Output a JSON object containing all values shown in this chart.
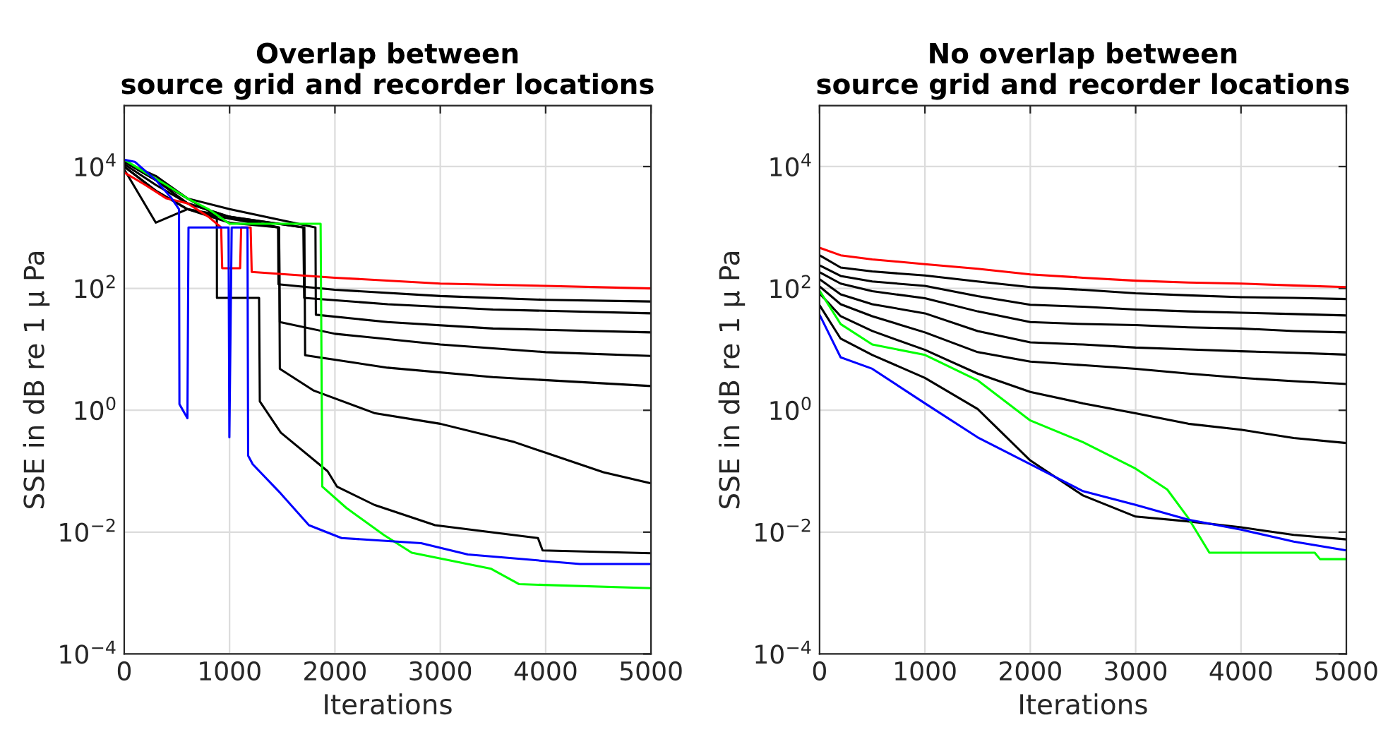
{
  "chart_data": [
    {
      "type": "line",
      "title": "Overlap between\nsource grid and recorder locations",
      "xlabel": "Iterations",
      "ylabel": "SSE in dB re 1 μ Pa",
      "log": "y",
      "grid": true,
      "xlim": [
        0,
        5000
      ],
      "xticks": [
        0,
        1000,
        2000,
        3000,
        4000,
        5000
      ],
      "ylim": [
        0.0001,
        100000
      ],
      "yticks": [
        {
          "value": 0.0001,
          "label": "10$^{−4}$"
        },
        {
          "value": 0.01,
          "label": "10$^{−2}$"
        },
        {
          "value": 1,
          "label": "10$^{0}$"
        },
        {
          "value": 100,
          "label": "10$^{2}$"
        },
        {
          "value": 10000,
          "label": "10$^{4}$"
        }
      ],
      "series": [
        {
          "color": "#000000",
          "x": [
            0,
            300,
            600,
            900,
            1460,
            1464,
            2000,
            3000,
            4000,
            5000
          ],
          "values": [
            12000,
            6000,
            3000,
            1500,
            1000,
            117,
            95,
            75,
            65,
            61
          ]
        },
        {
          "color": "#000000",
          "x": [
            0,
            300,
            600,
            1000,
            1700,
            1708,
            2500,
            3500,
            5000
          ],
          "values": [
            11000,
            5000,
            2500,
            1500,
            1000,
            70,
            55,
            45,
            39
          ]
        },
        {
          "color": "#000000",
          "x": [
            0,
            300,
            600,
            1000,
            1815,
            1819,
            2500,
            3500,
            5000
          ],
          "values": [
            12000,
            7000,
            3000,
            2000,
            1000,
            37,
            28,
            22,
            19
          ]
        },
        {
          "color": "#000000",
          "x": [
            0,
            300,
            600,
            1000,
            1470,
            1477,
            2000,
            3000,
            4000,
            5000
          ],
          "values": [
            10000,
            4000,
            2000,
            1200,
            1000,
            28,
            18,
            12,
            9,
            7.8
          ]
        },
        {
          "color": "#000000",
          "x": [
            0,
            300,
            600,
            1000,
            1710,
            1717,
            2500,
            3500,
            5000
          ],
          "values": [
            12000,
            6000,
            2500,
            1500,
            1000,
            8,
            5,
            3.5,
            2.5
          ]
        },
        {
          "color": "#000000",
          "x": [
            0,
            300,
            600,
            1000,
            1470,
            1477,
            1800,
            2374,
            3000,
            3705,
            4548,
            5000
          ],
          "values": [
            9000,
            1200,
            2000,
            1500,
            1000,
            4.8,
            2.1,
            0.9,
            0.6,
            0.3,
            0.096,
            0.063
          ]
        },
        {
          "color": "#000000",
          "x": [
            0,
            300,
            600,
            879,
            880,
            1280,
            1287,
            1486,
            1930,
            2019,
            2374,
            2950,
            3927,
            3971,
            5000
          ],
          "values": [
            10000,
            4000,
            2000,
            1500,
            70,
            70,
            1.4,
            0.43,
            0.1,
            0.056,
            0.028,
            0.013,
            0.008,
            0.005,
            0.0045
          ]
        },
        {
          "color": "#ff0000",
          "x": [
            0,
            200,
            400,
            600,
            800,
            920,
            930,
            1100,
            1110,
            1200,
            1210,
            2000,
            3000,
            4000,
            5000
          ],
          "values": [
            8000,
            5000,
            3000,
            2500,
            1500,
            1000,
            215,
            215,
            1000,
            1000,
            186,
            150,
            120,
            110,
            100
          ]
        },
        {
          "color": "#00ff00",
          "x": [
            0,
            200,
            400,
            600,
            800,
            1000,
            1864,
            1880,
            2108,
            2463,
            2729,
            3483,
            3749,
            5000
          ],
          "values": [
            13000,
            8000,
            5000,
            3000,
            2000,
            1150,
            1150,
            0.056,
            0.025,
            0.009,
            0.0046,
            0.0025,
            0.0014,
            0.0012
          ]
        },
        {
          "color": "#0000ff",
          "x": [
            0,
            100,
            300,
            450,
            520,
            524,
            600,
            610,
            990,
            998,
            1020,
            1170,
            1176,
            1220,
            1486,
            1753,
            2063,
            2818,
            3261,
            4326,
            5000
          ],
          "values": [
            13000,
            12000,
            6000,
            3000,
            2000,
            1.26,
            0.74,
            1000,
            1000,
            0.36,
            1000,
            1000,
            0.18,
            0.13,
            0.043,
            0.013,
            0.008,
            0.0066,
            0.0043,
            0.003,
            0.003
          ]
        }
      ]
    },
    {
      "type": "line",
      "title": "No overlap between\nsource grid and recorder locations",
      "xlabel": "Iterations",
      "ylabel": "SSE in dB re 1 μ Pa",
      "log": "y",
      "grid": true,
      "xlim": [
        0,
        5000
      ],
      "xticks": [
        0,
        1000,
        2000,
        3000,
        4000,
        5000
      ],
      "ylim": [
        0.0001,
        100000
      ],
      "yticks": [
        {
          "value": 0.0001,
          "label": "10$^{−4}$"
        },
        {
          "value": 0.01,
          "label": "10$^{−2}$"
        },
        {
          "value": 1,
          "label": "10$^{0}$"
        },
        {
          "value": 100,
          "label": "10$^{2}$"
        },
        {
          "value": 10000,
          "label": "10$^{4}$"
        }
      ],
      "x": [
        0,
        200,
        500,
        1000,
        1500,
        2000,
        2500,
        3000,
        3500,
        4000,
        4500,
        5000
      ],
      "series": [
        {
          "color": "#000000",
          "values": [
            350,
            220,
            190,
            163,
            130,
            105,
            95,
            83,
            77,
            72,
            70,
            67
          ]
        },
        {
          "color": "#000000",
          "values": [
            240,
            160,
            130,
            110,
            75,
            54,
            50,
            45,
            42,
            40,
            38,
            36
          ]
        },
        {
          "color": "#000000",
          "values": [
            185,
            120,
            90,
            69,
            42,
            28,
            26,
            25,
            23,
            22,
            20,
            19
          ]
        },
        {
          "color": "#000000",
          "values": [
            142,
            80,
            55,
            39,
            20,
            13,
            12,
            10.7,
            10,
            9.3,
            8.8,
            8.2
          ]
        },
        {
          "color": "#000000",
          "values": [
            108,
            55,
            35,
            19,
            9,
            6.3,
            5.5,
            4.8,
            4,
            3.4,
            3,
            2.7
          ]
        },
        {
          "color": "#000000",
          "values": [
            83,
            35,
            20,
            9.8,
            4,
            2,
            1.3,
            0.89,
            0.6,
            0.48,
            0.35,
            0.29
          ]
        },
        {
          "color": "#000000",
          "values": [
            53,
            15,
            8.1,
            3.4,
            1.05,
            0.15,
            0.04,
            0.018,
            0.015,
            0.012,
            0.009,
            0.0076
          ]
        },
        {
          "color": "#ff0000",
          "values": [
            465,
            350,
            300,
            250,
            210,
            170,
            150,
            134,
            125,
            120,
            112,
            105
          ]
        },
        {
          "color": "#00ff00",
          "x": [
            0,
            200,
            500,
            1000,
            1500,
            2000,
            2500,
            3000,
            3300,
            3500,
            3700,
            4700,
            4750,
            5000
          ],
          "values": [
            92,
            26,
            12,
            8.1,
            3.1,
            0.68,
            0.3,
            0.11,
            0.05,
            0.017,
            0.0046,
            0.0046,
            0.0036,
            0.0036
          ]
        },
        {
          "color": "#0000ff",
          "values": [
            37,
            7.4,
            4.8,
            1.3,
            0.36,
            0.13,
            0.047,
            0.028,
            0.016,
            0.011,
            0.007,
            0.005
          ]
        }
      ]
    }
  ]
}
